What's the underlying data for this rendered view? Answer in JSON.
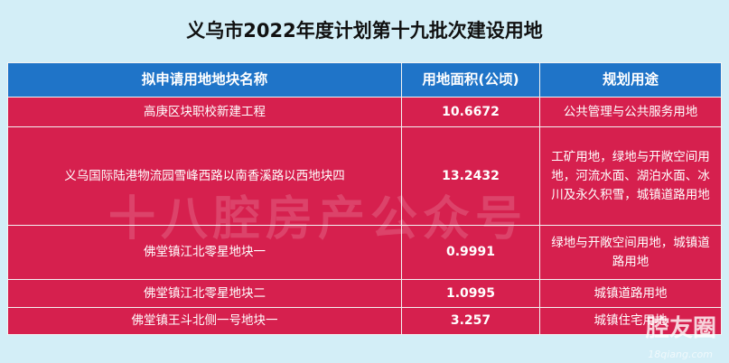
{
  "title": "义乌市2022年度计划第十九批次建设用地",
  "headers": [
    "拟申请用地地块名称",
    "用地面积(公顷)",
    "规划用途"
  ],
  "rows": [
    {
      "name": "高庚区块职校新建工程",
      "area": "10.6672",
      "use": "公共管理与公共服务用地"
    },
    {
      "name": "义乌国际陆港物流园雪峰西路以南香溪路以西地块四",
      "area": "13.2432",
      "use": "工矿用地，绿地与开敞空间用地，河流水面、湖泊水面、冰川及永久积雪，城镇道路用地"
    },
    {
      "name": "佛堂镇江北零星地块一",
      "area": "0.9991",
      "use": "绿地与开敞空间用地，城镇道路用地"
    },
    {
      "name": "佛堂镇江北零星地块二",
      "area": "1.0995",
      "use": "城镇道路用地"
    },
    {
      "name": "佛堂镇王斗北侧一号地块一",
      "area": "3.257",
      "use": "城镇住宅用地"
    }
  ],
  "watermarks": {
    "center": "十八腔房产公众号",
    "logo": "腔友圈",
    "site": "18qiang.com"
  }
}
